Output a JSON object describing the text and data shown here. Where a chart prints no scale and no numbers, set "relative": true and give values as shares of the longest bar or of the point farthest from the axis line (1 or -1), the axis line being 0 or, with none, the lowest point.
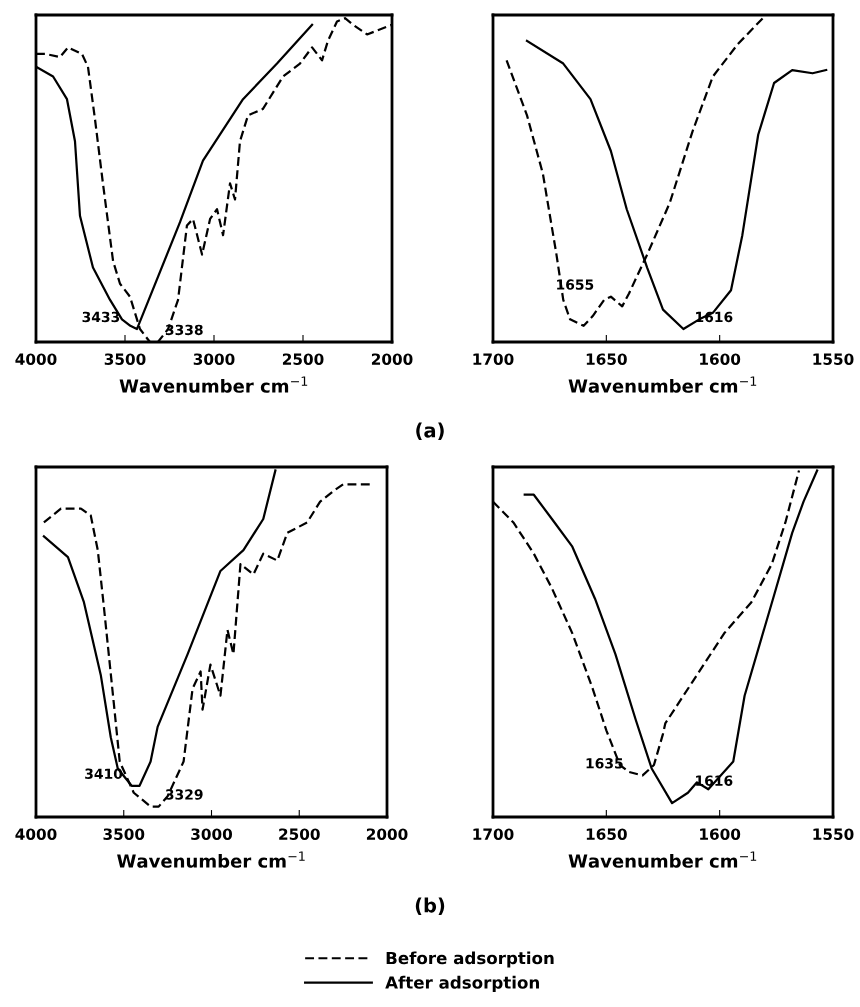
{
  "chart_data": [
    {
      "type": "line",
      "relative": true,
      "xlabel": "Wavenumber cm$^{−1}$",
      "xlim": [
        4000,
        2000
      ],
      "xticks": [
        4000,
        3500,
        3000,
        2500,
        2000
      ],
      "series": [
        {
          "color": "#000000",
          "line_style": "dashed",
          "x": [
            4000,
            3949,
            3865,
            3820,
            3742,
            3708,
            3669,
            3624,
            3567,
            3528,
            3472,
            3416,
            3360,
            3315,
            3258,
            3202,
            3152,
            3118,
            3067,
            3022,
            2983,
            2949,
            2910,
            2882,
            2854,
            2809,
            2725,
            2612,
            2517,
            2449,
            2393,
            2360,
            2309,
            2264,
            2219,
            2140,
            2000
          ],
          "values": [
            0.89,
            0.89,
            0.88,
            0.91,
            0.89,
            0.85,
            0.69,
            0.49,
            0.25,
            0.18,
            0.14,
            0.04,
            0.0,
            0.0,
            0.04,
            0.13,
            0.36,
            0.38,
            0.27,
            0.38,
            0.41,
            0.33,
            0.49,
            0.44,
            0.62,
            0.7,
            0.72,
            0.82,
            0.86,
            0.91,
            0.87,
            0.93,
            0.99,
            1.0,
            0.98,
            0.95,
            0.98
          ]
        },
        {
          "color": "#000000",
          "line_style": "solid",
          "x": [
            4000,
            3904,
            3826,
            3781,
            3753,
            3680,
            3584,
            3517,
            3470,
            3433,
            3191,
            3062,
            2837,
            2646,
            2449
          ],
          "values": [
            0.85,
            0.82,
            0.75,
            0.62,
            0.39,
            0.23,
            0.13,
            0.07,
            0.05,
            0.04,
            0.37,
            0.56,
            0.75,
            0.86,
            0.98
          ]
        }
      ],
      "annotations": [
        {
          "text": "3433",
          "x": 3433,
          "y": 0.04
        },
        {
          "text": "3338",
          "x": 3338,
          "y": 0.0
        },
        "(a)"
      ]
    },
    {
      "type": "line",
      "relative": true,
      "xlabel": "Wavenumber cm$^{−1}$",
      "xlim": [
        1700,
        1550
      ],
      "xticks": [
        1700,
        1650,
        1600,
        1550
      ],
      "series": [
        {
          "color": "#000000",
          "line_style": "dashed",
          "x": [
            1694,
            1685,
            1678,
            1672,
            1669,
            1666,
            1660,
            1656,
            1651,
            1648,
            1643,
            1640,
            1632,
            1622,
            1612,
            1603,
            1592,
            1581
          ],
          "values": [
            0.87,
            0.7,
            0.52,
            0.27,
            0.13,
            0.07,
            0.05,
            0.08,
            0.13,
            0.14,
            0.11,
            0.15,
            0.27,
            0.43,
            0.65,
            0.82,
            0.92,
            1.0
          ]
        },
        {
          "color": "#000000",
          "line_style": "solid",
          "x": [
            1685,
            1669,
            1657,
            1648,
            1641,
            1632,
            1625,
            1616,
            1609,
            1603,
            1595,
            1590,
            1583,
            1576,
            1568,
            1559,
            1553
          ],
          "values": [
            0.93,
            0.86,
            0.75,
            0.59,
            0.41,
            0.23,
            0.1,
            0.04,
            0.07,
            0.09,
            0.16,
            0.33,
            0.64,
            0.8,
            0.84,
            0.83,
            0.84
          ]
        }
      ],
      "annotations": [
        {
          "text": "1655",
          "x": 1648,
          "y": 0.14
        },
        {
          "text": "1616",
          "x": 1616,
          "y": 0.04
        }
      ]
    },
    {
      "type": "line",
      "relative": true,
      "xlabel": "Wavenumber cm$^{−1}$",
      "xlim": [
        4000,
        2000
      ],
      "xticks": [
        4000,
        3500,
        3000,
        2500,
        2000
      ],
      "series": [
        {
          "color": "#000000",
          "line_style": "dashed",
          "x": [
            3955,
            3858,
            3744,
            3688,
            3648,
            3614,
            3557,
            3523,
            3443,
            3347,
            3301,
            3250,
            3159,
            3108,
            3062,
            3051,
            3006,
            2949,
            2909,
            2875,
            2835,
            2761,
            2705,
            2625,
            2568,
            2455,
            2381,
            2307,
            2250,
            2193,
            2097
          ],
          "values": [
            0.85,
            0.89,
            0.89,
            0.87,
            0.77,
            0.61,
            0.33,
            0.16,
            0.07,
            0.03,
            0.03,
            0.06,
            0.16,
            0.37,
            0.42,
            0.31,
            0.44,
            0.35,
            0.54,
            0.47,
            0.73,
            0.7,
            0.76,
            0.74,
            0.82,
            0.85,
            0.91,
            0.94,
            0.96,
            0.96,
            0.96
          ]
        },
        {
          "color": "#000000",
          "line_style": "solid",
          "x": [
            3955,
            3818,
            3727,
            3631,
            3574,
            3534,
            3455,
            3410,
            3347,
            3307,
            3136,
            2949,
            2818,
            2705,
            2636
          ],
          "values": [
            0.81,
            0.75,
            0.62,
            0.41,
            0.23,
            0.14,
            0.09,
            0.09,
            0.16,
            0.26,
            0.47,
            0.71,
            0.77,
            0.86,
            1.0
          ]
        }
      ],
      "annotations": [
        {
          "text": "3410",
          "x": 3410,
          "y": 0.09
        },
        {
          "text": "3329",
          "x": 3329,
          "y": 0.03
        },
        "(b)"
      ]
    },
    {
      "type": "line",
      "relative": true,
      "xlabel": "Wavenumber cm$^{−1}$",
      "xlim": [
        1700,
        1550
      ],
      "xticks": [
        1700,
        1650,
        1600,
        1550
      ],
      "legend": "bottom",
      "series": [
        {
          "name": "Before adsorption",
          "color": "#000000",
          "line_style": "dashed",
          "x": [
            1700,
            1691,
            1682,
            1674,
            1665,
            1656,
            1650,
            1644,
            1640,
            1634,
            1629,
            1625,
            1624,
            1612,
            1598,
            1586,
            1577,
            1571,
            1565
          ],
          "values": [
            0.91,
            0.85,
            0.76,
            0.66,
            0.53,
            0.37,
            0.25,
            0.15,
            0.13,
            0.12,
            0.15,
            0.24,
            0.27,
            0.39,
            0.53,
            0.62,
            0.73,
            0.85,
            1.0
          ]
        },
        {
          "name": "After adsorption",
          "color": "#000000",
          "line_style": "solid",
          "x": [
            1686,
            1682,
            1674,
            1665,
            1655,
            1646,
            1637,
            1630,
            1621,
            1614,
            1610,
            1605,
            1594,
            1589,
            1576,
            1568,
            1563,
            1557
          ],
          "values": [
            0.93,
            0.93,
            0.86,
            0.78,
            0.63,
            0.47,
            0.28,
            0.14,
            0.04,
            0.07,
            0.1,
            0.08,
            0.16,
            0.35,
            0.64,
            0.82,
            0.91,
            1.0
          ]
        }
      ],
      "annotations": [
        {
          "text": "1635",
          "x": 1635,
          "y": 0.12
        },
        {
          "text": "1616",
          "x": 1616,
          "y": 0.07
        }
      ]
    }
  ]
}
